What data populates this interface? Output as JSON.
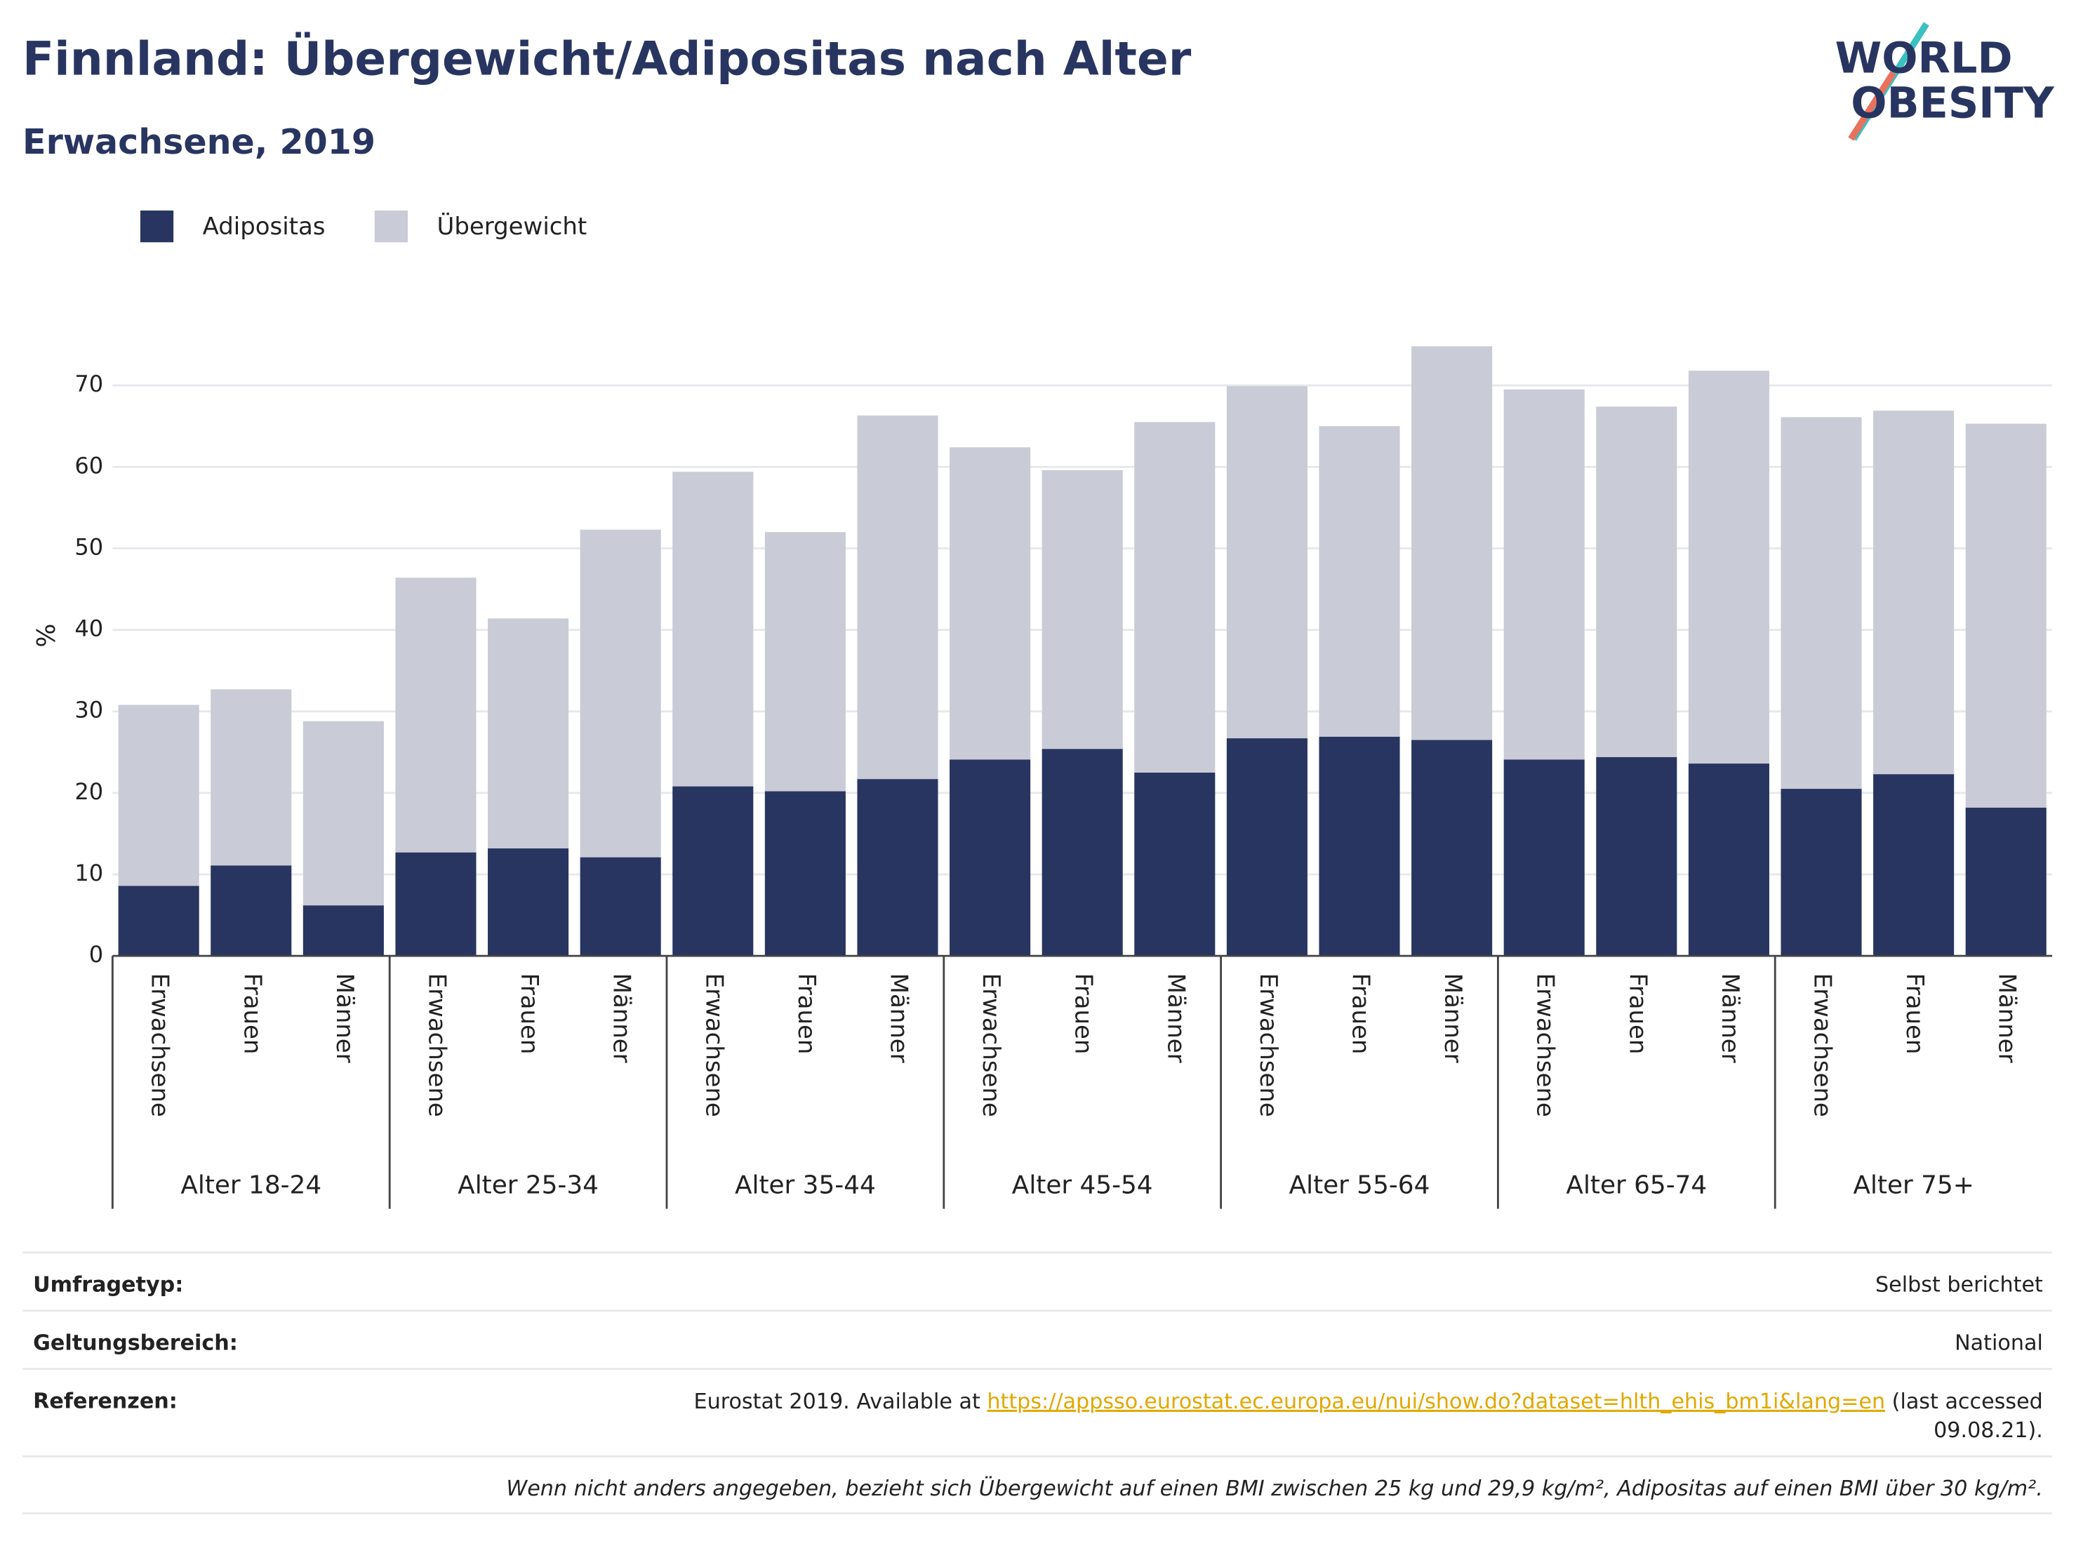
{
  "chart_data": {
    "type": "stacked_bar",
    "title": "Finnland: Übergewicht/Adipositas nach Alter",
    "subtitle": "Erwachsene, 2019",
    "y_label": "%",
    "categories": [
      "Erwachsene",
      "Frauen",
      "Männer",
      "Erwachsene",
      "Frauen",
      "Männer",
      "Erwachsene",
      "Frauen",
      "Männer",
      "Erwachsene",
      "Frauen",
      "Männer",
      "Erwachsene",
      "Frauen",
      "Männer",
      "Erwachsene",
      "Frauen",
      "Männer",
      "Erwachsene",
      "Frauen",
      "Männer"
    ],
    "groups": [
      "Alter 18-24",
      "Alter 25-34",
      "Alter 35-44",
      "Alter 45-54",
      "Alter 55-64",
      "Alter 65-74",
      "Alter 75+"
    ],
    "series": [
      {
        "name": "Adipositas",
        "color": "#283560",
        "values": [
          8.6,
          11.1,
          6.2,
          12.7,
          13.2,
          12.1,
          20.8,
          20.2,
          21.7,
          24.1,
          25.4,
          22.5,
          26.7,
          26.9,
          26.5,
          24.1,
          24.4,
          23.6,
          20.5,
          22.3,
          18.2
        ]
      },
      {
        "name": "Übergewicht",
        "color": "#c9cbd6",
        "values": [
          22.2,
          21.6,
          22.6,
          33.7,
          28.2,
          40.2,
          38.6,
          31.8,
          44.6,
          38.3,
          34.2,
          43.0,
          43.2,
          38.1,
          48.3,
          45.4,
          43.0,
          48.2,
          45.6,
          44.6,
          47.1
        ]
      }
    ],
    "ylim": [
      0,
      77
    ],
    "yticks": [
      0,
      10,
      20,
      30,
      40,
      50,
      60,
      70
    ],
    "grid": true,
    "legend": "top-left"
  },
  "logo": {
    "line1": "WORLD",
    "line2": "OBESITY"
  },
  "footer": {
    "rows": [
      {
        "label": "Umfragetyp:",
        "value": "Selbst berichtet"
      },
      {
        "label": "Geltungsbereich:",
        "value": "National"
      }
    ],
    "reference": {
      "label": "Referenzen:",
      "prefix": "Eurostat 2019. Available at",
      "link": "https://appsso.eurostat.ec.europa.eu/nui/show.do?dataset=hlth_ehis_bm1i&lang=en",
      "suffix": "(last accessed",
      "suffix2": "09.08.21)."
    },
    "note": "Wenn nicht anders angegeben, bezieht sich Übergewicht auf einen BMI zwischen 25 kg und 29,9 kg/m², Adipositas auf einen BMI über 30 kg/m²."
  }
}
